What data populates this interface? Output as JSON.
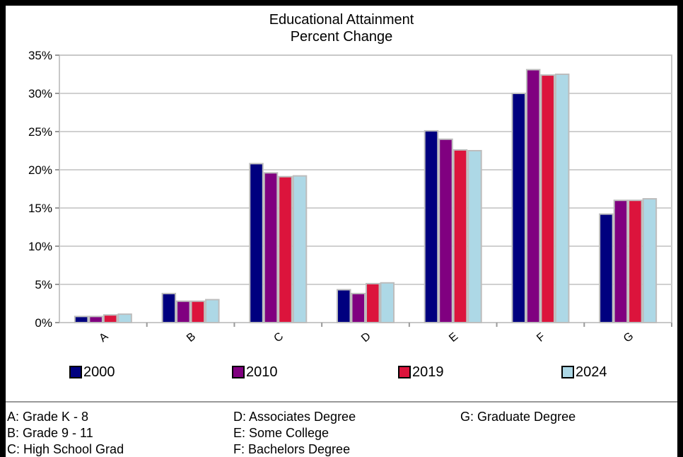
{
  "chart_data": {
    "type": "bar",
    "title": "Educational Attainment",
    "subtitle": "Percent Change",
    "categories": [
      "A",
      "B",
      "C",
      "D",
      "E",
      "F",
      "G"
    ],
    "series": [
      {
        "name": "2000",
        "color": "#00007f",
        "values": [
          0.8,
          3.8,
          20.8,
          4.3,
          25.1,
          30.0,
          14.2
        ]
      },
      {
        "name": "2010",
        "color": "#800080",
        "values": [
          0.8,
          2.8,
          19.6,
          3.8,
          24.0,
          33.1,
          16.0
        ]
      },
      {
        "name": "2019",
        "color": "#dc143c",
        "values": [
          1.0,
          2.8,
          19.1,
          5.1,
          22.6,
          32.4,
          16.0
        ]
      },
      {
        "name": "2024",
        "color": "#add8e6",
        "values": [
          1.1,
          3.0,
          19.2,
          5.2,
          22.5,
          32.5,
          16.2
        ]
      }
    ],
    "ylim": [
      0,
      35
    ],
    "yticks": [
      "0%",
      "5%",
      "10%",
      "15%",
      "20%",
      "25%",
      "30%",
      "35%"
    ],
    "grid": true,
    "legend_position": "bottom"
  },
  "key": [
    "A: Grade K - 8",
    "B: Grade 9 - 11",
    "C: High School Grad",
    "D: Associates Degree",
    "E: Some College",
    "F: Bachelors Degree",
    "G: Graduate Degree"
  ]
}
